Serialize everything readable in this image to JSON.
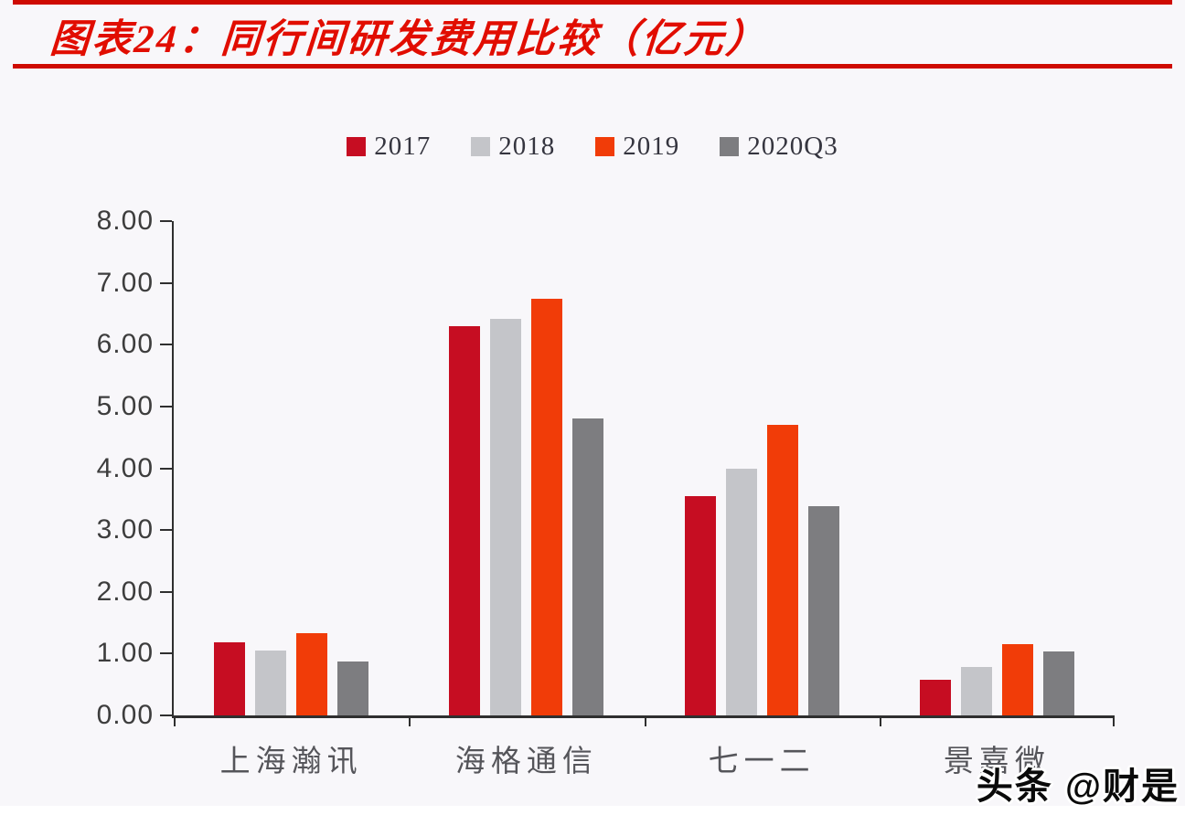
{
  "header": {
    "title": "图表24：同行间研发费用比较（亿元）",
    "accent_color": "#ce0b01",
    "title_color": "#e10d00"
  },
  "chart_data": {
    "type": "bar",
    "title": "同行间研发费用比较（亿元）",
    "categories": [
      "上海瀚讯",
      "海格通信",
      "七一二",
      "景嘉微"
    ],
    "series": [
      {
        "name": "2017",
        "color": "#c60d22",
        "values": [
          1.18,
          6.3,
          3.55,
          0.57
        ]
      },
      {
        "name": "2018",
        "color": "#c4c5c9",
        "values": [
          1.05,
          6.42,
          4.0,
          0.79
        ]
      },
      {
        "name": "2019",
        "color": "#f13c08",
        "values": [
          1.33,
          6.75,
          4.7,
          1.15
        ]
      },
      {
        "name": "2020Q3",
        "color": "#7d7d80",
        "values": [
          0.88,
          4.8,
          3.38,
          1.03
        ]
      }
    ],
    "xlabel": "",
    "ylabel": "",
    "ylim": [
      0,
      8
    ],
    "y_ticks": [
      "8.00",
      "7.00",
      "6.00",
      "5.00",
      "4.00",
      "3.00",
      "2.00",
      "1.00",
      "0.00"
    ],
    "grid": false,
    "legend_position": "top"
  },
  "watermark": "头条 @财是"
}
